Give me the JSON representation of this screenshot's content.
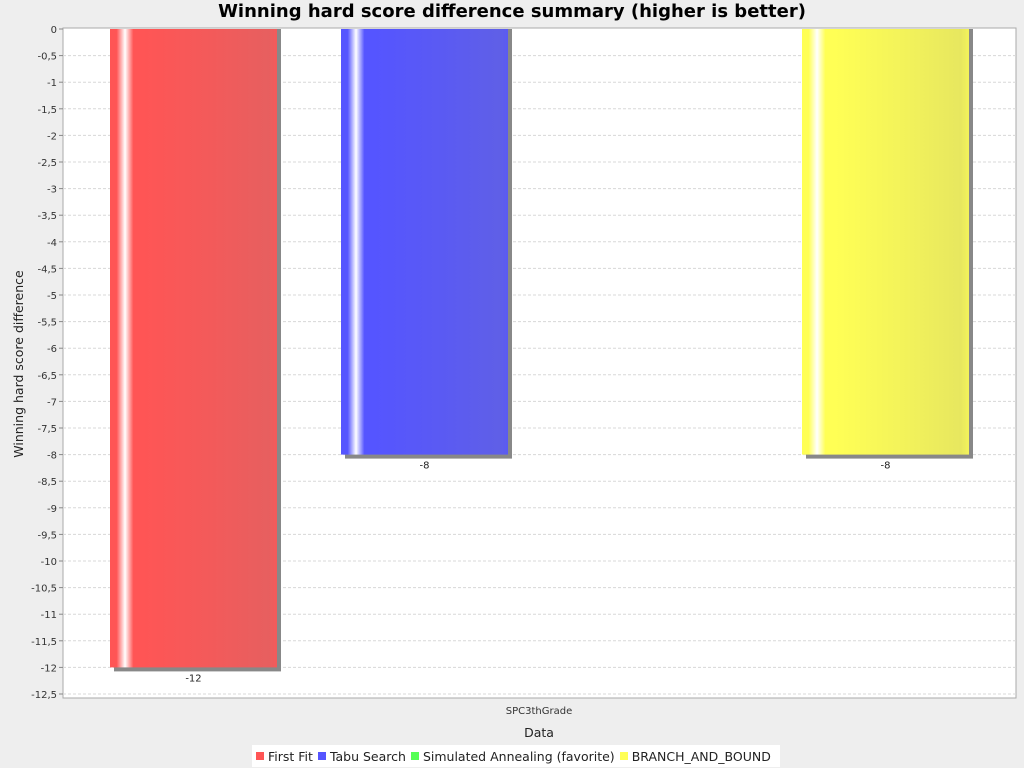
{
  "chart_data": {
    "type": "bar",
    "title": "Winning hard score difference summary (higher is better)",
    "xlabel": "Data",
    "ylabel": "Winning hard score difference",
    "categories": [
      "SPC3thGrade"
    ],
    "ylim": [
      -12.5,
      0
    ],
    "ytick_step": 0.5,
    "grid": true,
    "legend_position": "bottom",
    "series": [
      {
        "name": "First Fit",
        "values": [
          -12
        ],
        "color": "#ff5555",
        "label": "-12"
      },
      {
        "name": "Tabu Search",
        "values": [
          -8
        ],
        "color": "#5555ff",
        "label": "-8"
      },
      {
        "name": "Simulated Annealing (favorite)",
        "values": [
          null
        ],
        "color": "#55ff55",
        "label": ""
      },
      {
        "name": "BRANCH_AND_BOUND",
        "values": [
          -8
        ],
        "color": "#ffff55",
        "label": "-8"
      }
    ]
  }
}
